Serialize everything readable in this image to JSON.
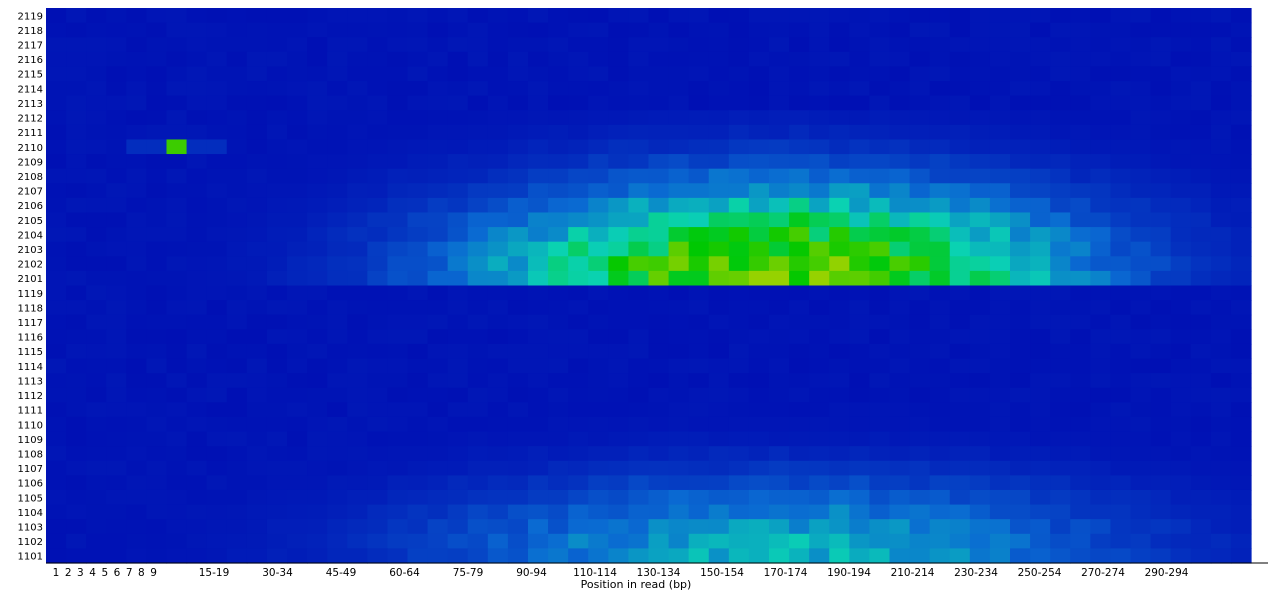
{
  "chart_data": {
    "type": "heatmap",
    "title": "",
    "xlabel": "Position in read (bp)",
    "ylabel": "",
    "grid": false,
    "legend": "none",
    "colormap": [
      "#0010b4",
      "#0a6ad2",
      "#0ad2b4",
      "#00c800",
      "#96d200"
    ],
    "x_tick_labels": [
      "1",
      "2",
      "3",
      "4",
      "5",
      "6",
      "7",
      "8",
      "9",
      "15-19",
      "30-34",
      "45-49",
      "60-64",
      "75-79",
      "90-94",
      "110-114",
      "130-134",
      "150-154",
      "170-174",
      "190-194",
      "210-214",
      "230-234",
      "250-254",
      "270-274",
      "290-294"
    ],
    "y_categories": [
      "2119",
      "2118",
      "2117",
      "2116",
      "2115",
      "2114",
      "2113",
      "2112",
      "2111",
      "2110",
      "2109",
      "2108",
      "2107",
      "2106",
      "2105",
      "2104",
      "2103",
      "2102",
      "2101",
      "1119",
      "1118",
      "1117",
      "1116",
      "1115",
      "1114",
      "1113",
      "1112",
      "1111",
      "1110",
      "1109",
      "1108",
      "1107",
      "1106",
      "1105",
      "1104",
      "1103",
      "1102",
      "1101"
    ],
    "x_columns": 60,
    "hotspots": [
      {
        "tile": "2110",
        "column": 6,
        "level": 0.85
      }
    ],
    "bands": [
      {
        "tiles": [
          "2101",
          "2102",
          "2103",
          "2104",
          "2105",
          "2106",
          "2107",
          "2108",
          "2109",
          "2110",
          "2111",
          "2112"
        ],
        "peak_tile": "2101",
        "peak_column": 36,
        "peak_level": 1.0,
        "spread_tiles": 6,
        "spread_columns": 14
      },
      {
        "tiles": [
          "1101",
          "1102",
          "1103",
          "1104",
          "1105",
          "1106",
          "1107",
          "1108",
          "1109",
          "1110",
          "1111",
          "1112"
        ],
        "peak_tile": "1101",
        "peak_column": 36,
        "peak_level": 0.45,
        "spread_tiles": 5,
        "spread_columns": 16
      }
    ]
  }
}
